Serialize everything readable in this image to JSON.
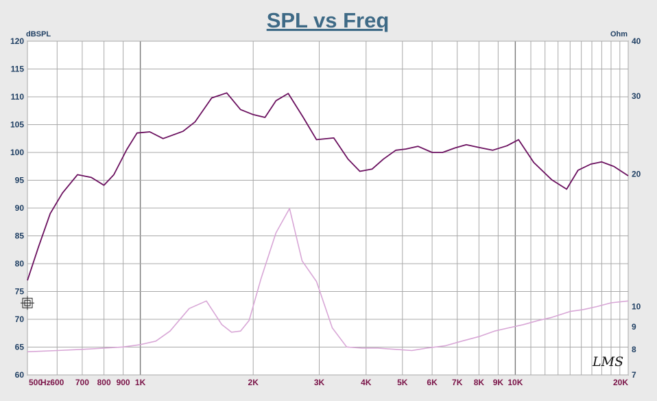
{
  "chart_data": {
    "type": "line",
    "title": "SPL vs Freq",
    "y_left_label": "dBSPL",
    "y_right_label": "Ohm",
    "x_scale": "log",
    "xlim": [
      500,
      20000
    ],
    "ylim_left": [
      60,
      120
    ],
    "ylim_right": [
      7,
      40
    ],
    "y_right_scale": "log",
    "grid": true,
    "x_ticks": [
      {
        "value": 500,
        "label": "500"
      },
      {
        "value": 600,
        "label": "600"
      },
      {
        "value": 700,
        "label": "700"
      },
      {
        "value": 800,
        "label": "800"
      },
      {
        "value": 900,
        "label": "900"
      },
      {
        "value": 1000,
        "label": "1K"
      },
      {
        "value": 2000,
        "label": "2K"
      },
      {
        "value": 3000,
        "label": "3K"
      },
      {
        "value": 4000,
        "label": "4K"
      },
      {
        "value": 5000,
        "label": "5K"
      },
      {
        "value": 6000,
        "label": "6K"
      },
      {
        "value": 7000,
        "label": "7K"
      },
      {
        "value": 8000,
        "label": "8K"
      },
      {
        "value": 9000,
        "label": "9K"
      },
      {
        "value": 10000,
        "label": "10K"
      },
      {
        "value": 20000,
        "label": "20K"
      }
    ],
    "x_unit_label": "Hz",
    "y_left_ticks": [
      60,
      65,
      70,
      75,
      80,
      85,
      90,
      95,
      100,
      105,
      110,
      115,
      120
    ],
    "y_right_ticks": [
      {
        "value": 7,
        "label": "7"
      },
      {
        "value": 8,
        "label": "8"
      },
      {
        "value": 9,
        "label": "9"
      },
      {
        "value": 10,
        "label": "10"
      },
      {
        "value": 20,
        "label": "20"
      },
      {
        "value": 30,
        "label": "30"
      },
      {
        "value": 40,
        "label": "40"
      }
    ],
    "series": [
      {
        "axis": "left",
        "color": "#6a0f5e",
        "x": [
          500,
          535,
          575,
          620,
          680,
          740,
          800,
          850,
          920,
          980,
          1060,
          1150,
          1300,
          1400,
          1550,
          1700,
          1850,
          2000,
          2150,
          2300,
          2480,
          2720,
          2950,
          3280,
          3580,
          3850,
          4150,
          4450,
          4800,
          5100,
          5500,
          6000,
          6400,
          6900,
          7400,
          8000,
          8700,
          9500,
          10200,
          11200,
          12500,
          13700,
          14700,
          15900,
          17000,
          18300,
          20000
        ],
        "values": [
          77,
          83,
          89,
          92.7,
          96,
          95.5,
          94.1,
          96,
          100.5,
          103.5,
          103.7,
          102.5,
          103.8,
          105.5,
          109.8,
          110.7,
          107.7,
          106.8,
          106.3,
          109.3,
          110.6,
          106.3,
          102.3,
          102.6,
          98.8,
          96.6,
          97.0,
          98.8,
          100.4,
          100.6,
          101.1,
          100.0,
          100.0,
          100.8,
          101.4,
          100.9,
          100.4,
          101.2,
          102.3,
          98.2,
          95.1,
          93.4,
          96.8,
          97.9,
          98.3,
          97.5,
          95.8
        ]
      },
      {
        "axis": "right",
        "color": "#d8a6d6",
        "x": [
          500,
          600,
          700,
          800,
          900,
          1000,
          1100,
          1200,
          1350,
          1500,
          1650,
          1750,
          1850,
          1950,
          2100,
          2300,
          2500,
          2700,
          2950,
          3250,
          3550,
          3900,
          4300,
          4800,
          5300,
          5800,
          6500,
          7200,
          8000,
          8800,
          9600,
          10500,
          11500,
          12500,
          14000,
          15200,
          16500,
          18000,
          20000
        ],
        "values": [
          7.9,
          7.95,
          8.0,
          8.05,
          8.1,
          8.2,
          8.35,
          8.8,
          9.9,
          10.3,
          9.1,
          8.75,
          8.8,
          9.3,
          11.6,
          14.7,
          16.7,
          12.7,
          11.4,
          8.95,
          8.1,
          8.05,
          8.05,
          8.0,
          7.95,
          8.05,
          8.15,
          8.35,
          8.55,
          8.8,
          8.95,
          9.1,
          9.3,
          9.45,
          9.75,
          9.85,
          10.0,
          10.2,
          10.3
        ]
      }
    ],
    "cursor": {
      "freq": 500,
      "value": 77
    },
    "logo_text": "LMS"
  }
}
